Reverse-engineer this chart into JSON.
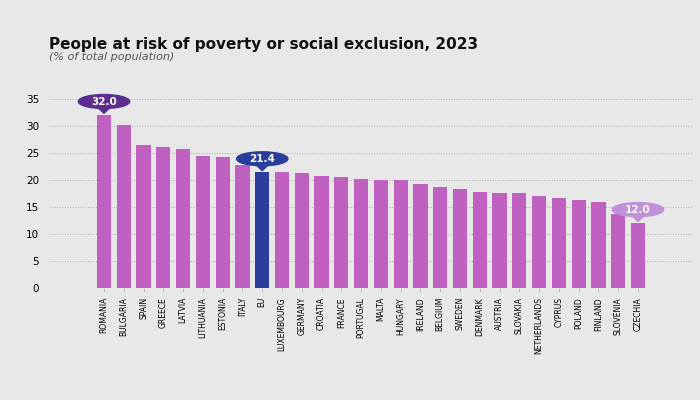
{
  "title": "People at risk of poverty or social exclusion, 2023",
  "subtitle": "(% of total population)",
  "categories": [
    "ROMANIA",
    "BULGARIA",
    "SPAIN",
    "GREECE",
    "LATVIA",
    "LITHUANIA",
    "ESTONIA",
    "ITALY",
    "EU",
    "LUXEMBOURG",
    "GERMANY",
    "CROATIA",
    "FRANCE",
    "PORTUGAL",
    "MALTA",
    "HUNGARY",
    "IRELAND",
    "BELGIUM",
    "SWEDEN",
    "DENMARK",
    "AUSTRIA",
    "SLOVAKIA",
    "NETHERLANDS",
    "CYPRUS",
    "POLAND",
    "FINLAND",
    "SLOVENIA",
    "CZECHIA"
  ],
  "values": [
    32.0,
    30.1,
    26.5,
    26.1,
    25.7,
    24.4,
    24.2,
    22.8,
    21.4,
    21.4,
    21.3,
    20.7,
    20.5,
    20.2,
    19.9,
    19.9,
    19.2,
    18.7,
    18.4,
    17.8,
    17.6,
    17.5,
    17.0,
    16.7,
    16.3,
    15.9,
    13.6,
    12.0
  ],
  "bar_color_default": "#c060c0",
  "bar_color_eu": "#2b3e9e",
  "eu_index": 8,
  "annotation_romania": {
    "index": 0,
    "value": 32.0,
    "color": "#5b2d8e"
  },
  "annotation_eu": {
    "index": 8,
    "value": 21.4,
    "color": "#2b3e9e"
  },
  "annotation_czechia": {
    "index": 27,
    "value": 12.0,
    "color": "#c090d8"
  },
  "ylim": [
    0,
    37
  ],
  "yticks": [
    0,
    5,
    10,
    15,
    20,
    25,
    30,
    35
  ],
  "background_color": "#e8e8e8",
  "title_fontsize": 11,
  "subtitle_fontsize": 8
}
